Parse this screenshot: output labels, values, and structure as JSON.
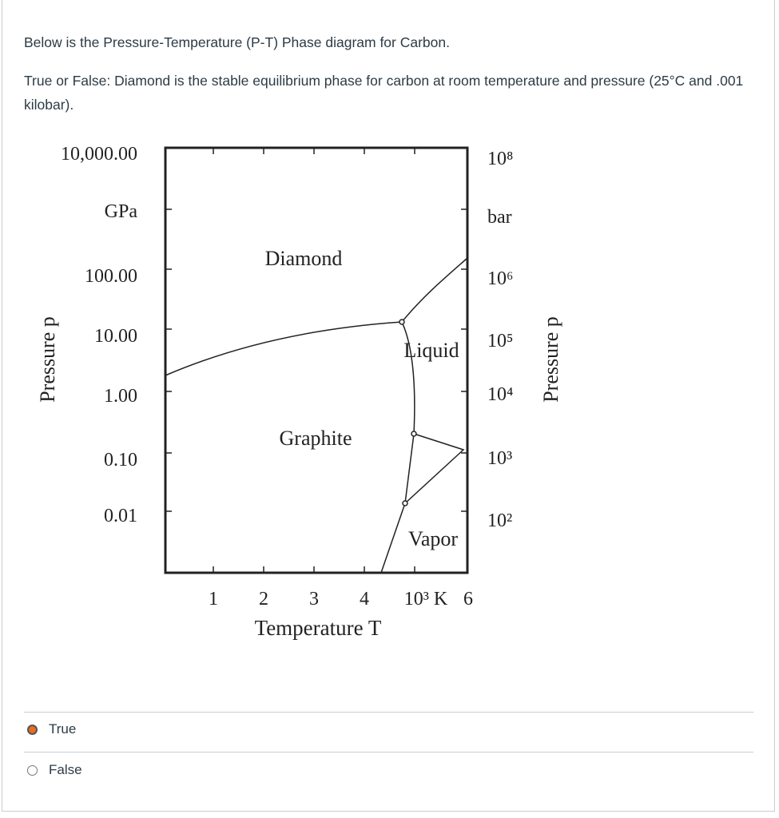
{
  "question": {
    "intro": "Below is the Pressure-Temperature (P-T) Phase diagram for Carbon.",
    "prompt": "True or False: Diamond is the stable equilibrium phase for carbon at room temperature and pressure (25°C and .001 kilobar)."
  },
  "diagram": {
    "left_ticks": [
      "10,000.00",
      "GPa",
      "100.00",
      "10.00",
      "1.00",
      "0.10",
      "0.01"
    ],
    "right_ticks": [
      "10⁸",
      "bar",
      "10⁶",
      "10⁵",
      "10⁴",
      "10³",
      "10²"
    ],
    "bottom_ticks": [
      "1",
      "2",
      "3",
      "4",
      "10³ K",
      "6"
    ],
    "x_label": "Temperature T",
    "left_label": "Pressure p",
    "right_label": "Pressure p",
    "regions": [
      "Diamond",
      "Liquid",
      "Graphite",
      "Vapor"
    ]
  },
  "options": [
    {
      "label": "True",
      "selected": true
    },
    {
      "label": "False",
      "selected": false
    }
  ]
}
